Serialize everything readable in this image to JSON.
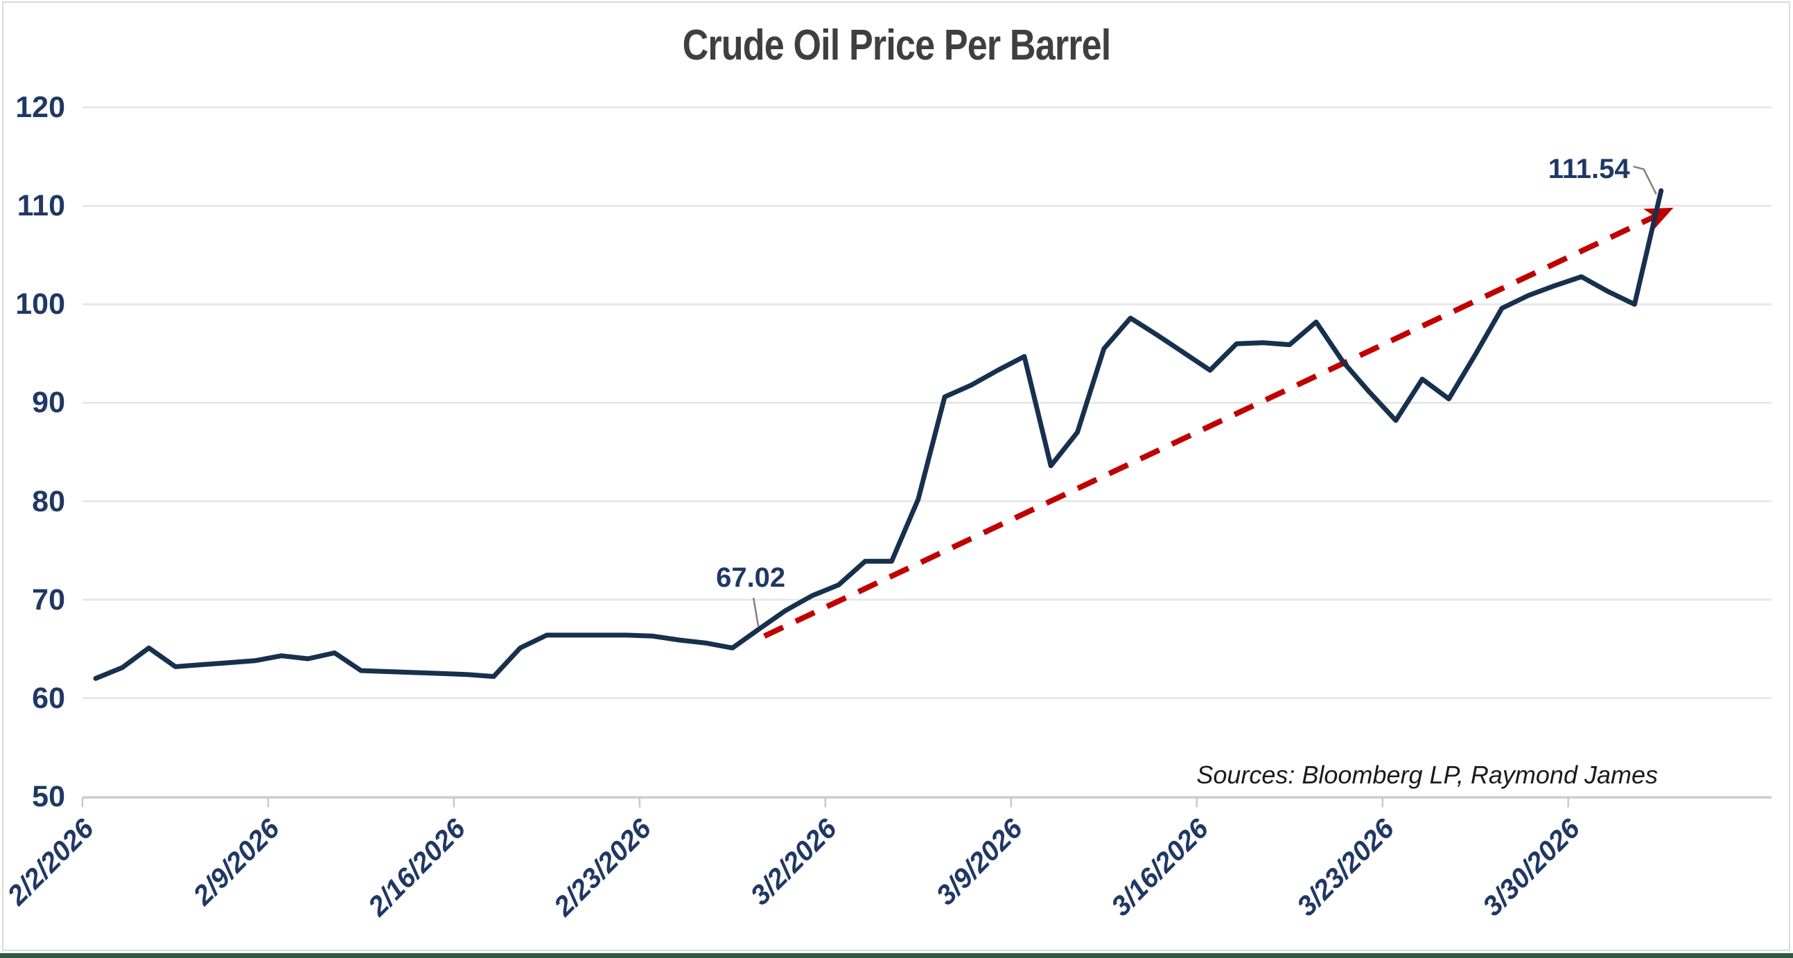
{
  "page": {
    "background_color": "#ffffff",
    "frame_border_color": "#d9d9d9",
    "bottom_bar_color": "#2e5c41"
  },
  "chart_data": {
    "type": "line",
    "title": "Crude Oil Price Per Barrel",
    "source_note": "Sources: Bloomberg LP, Raymond James",
    "grid": true,
    "legend": "none",
    "categories": [
      "2/2/2026",
      "2/3/2026",
      "2/4/2026",
      "2/5/2026",
      "2/6/2026",
      "2/7/2026",
      "2/8/2026",
      "2/9/2026",
      "2/10/2026",
      "2/11/2026",
      "2/12/2026",
      "2/13/2026",
      "2/14/2026",
      "2/15/2026",
      "2/16/2026",
      "2/17/2026",
      "2/18/2026",
      "2/19/2026",
      "2/20/2026",
      "2/21/2026",
      "2/22/2026",
      "2/23/2026",
      "2/24/2026",
      "2/25/2026",
      "2/26/2026",
      "2/27/2026",
      "2/28/2026",
      "3/1/2026",
      "3/2/2026",
      "3/3/2026",
      "3/4/2026",
      "3/5/2026",
      "3/6/2026",
      "3/7/2026",
      "3/8/2026",
      "3/9/2026",
      "3/10/2026",
      "3/11/2026",
      "3/12/2026",
      "3/13/2026",
      "3/14/2026",
      "3/15/2026",
      "3/16/2026",
      "3/17/2026",
      "3/18/2026",
      "3/19/2026",
      "3/20/2026",
      "3/21/2026",
      "3/22/2026",
      "3/23/2026",
      "3/24/2026",
      "3/25/2026",
      "3/26/2026",
      "3/27/2026",
      "3/28/2026",
      "3/29/2026",
      "3/30/2026",
      "3/31/2026",
      "4/1/2026",
      "4/2/2026"
    ],
    "series": [
      {
        "name": "Crude Oil Price Per Barrel",
        "color": "#17304e",
        "values": [
          62.0,
          63.1,
          65.1,
          63.2,
          63.4,
          63.6,
          63.8,
          64.3,
          64.0,
          64.6,
          62.8,
          62.7,
          62.6,
          62.5,
          62.4,
          62.2,
          65.1,
          66.4,
          66.4,
          66.4,
          66.4,
          66.3,
          65.9,
          65.6,
          65.1,
          67.02,
          68.9,
          70.4,
          71.5,
          73.9,
          73.9,
          80.2,
          90.6,
          91.8,
          93.3,
          94.7,
          83.6,
          87.0,
          95.5,
          98.6,
          96.9,
          95.1,
          93.3,
          96.0,
          96.1,
          95.9,
          98.2,
          94.2,
          91.1,
          88.2,
          92.4,
          90.4,
          94.9,
          99.6,
          100.9,
          101.9,
          102.8,
          101.3,
          100.0,
          111.54
        ]
      }
    ],
    "trend_line": {
      "style": "dashed",
      "color": "#c00000",
      "arrow": true,
      "from": {
        "index": 25.2,
        "value": 66.3
      },
      "to": {
        "index": 59.3,
        "value": 109.6
      }
    },
    "annotations": [
      {
        "text": "67.02",
        "index": 25,
        "value": 67.02,
        "anchor": "above"
      },
      {
        "text": "111.54",
        "index": 59,
        "value": 111.54,
        "anchor": "left"
      }
    ],
    "y_axis": {
      "min": 50,
      "max": 120,
      "step": 10,
      "ticks": [
        120,
        110,
        100,
        90,
        80,
        70,
        60,
        50
      ],
      "tick_labels": [
        "120",
        "110",
        "100",
        "90",
        "80",
        "70",
        "60",
        "50"
      ],
      "label_color": "#1f3864"
    },
    "x_axis": {
      "tick_label_every": 7,
      "tick_labels": [
        "2/2/2026",
        "2/9/2026",
        "2/16/2026",
        "2/23/2026",
        "3/2/2026",
        "3/9/2026",
        "3/16/2026",
        "3/23/2026",
        "3/30/2026"
      ],
      "label_color": "#1f3864"
    },
    "style": {
      "gridline_color": "#e4e4e4",
      "axis_color": "#c8c8c8",
      "leader_color": "#7f7f7f"
    }
  }
}
